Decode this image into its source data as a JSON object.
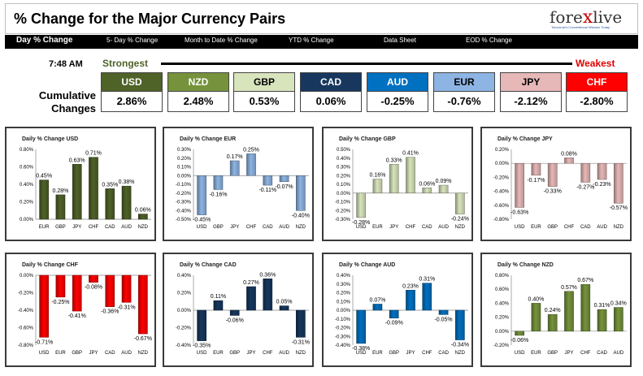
{
  "header": {
    "title": "% Change for the Major Currency Pairs",
    "logo_brand_pre": "fore",
    "logo_brand_x": "x",
    "logo_brand_post": "live",
    "logo_tagline": "Tomorrow's Conventional Wisdom Today"
  },
  "nav": {
    "items": [
      "Day % Change",
      "5- Day % Change",
      "Month to Date % Change",
      "YTD % Change",
      "Data Sheet",
      "EOD % Change"
    ]
  },
  "time": "7:48 AM",
  "strongest_label": "Strongest",
  "weakest_label": "Weakest",
  "cumulative_label": "Cumulative Changes",
  "currencies": [
    {
      "name": "USD",
      "value": "2.86%",
      "color": "#4f6228",
      "text_color": "#ffffff"
    },
    {
      "name": "NZD",
      "value": "2.48%",
      "color": "#76933c",
      "text_color": "#ffffff"
    },
    {
      "name": "GBP",
      "value": "0.53%",
      "color": "#d8e4bc",
      "text_color": "#000000"
    },
    {
      "name": "CAD",
      "value": "0.06%",
      "color": "#17375e",
      "text_color": "#ffffff"
    },
    {
      "name": "AUD",
      "value": "-0.25%",
      "color": "#0070c0",
      "text_color": "#ffffff"
    },
    {
      "name": "EUR",
      "value": "-0.76%",
      "color": "#8db4e2",
      "text_color": "#000000"
    },
    {
      "name": "JPY",
      "value": "-2.12%",
      "color": "#e6b8b7",
      "text_color": "#000000"
    },
    {
      "name": "CHF",
      "value": "-2.80%",
      "color": "#ff0000",
      "text_color": "#ffffff"
    }
  ],
  "chart_data": [
    {
      "type": "bar",
      "title": "Daily % Change USD",
      "color": "#4f6228",
      "categories": [
        "EUR",
        "GBP",
        "JPY",
        "CHF",
        "CAD",
        "AUD",
        "NZD"
      ],
      "values": [
        0.45,
        0.28,
        0.63,
        0.71,
        0.35,
        0.38,
        0.06
      ],
      "labels": [
        "0.45%",
        "0.28%",
        "0.63%",
        "0.71%",
        "0.35%",
        "0.38%",
        "0.06%"
      ],
      "ylim": [
        0,
        0.8
      ],
      "yticks": [
        0,
        0.2,
        0.4,
        0.6,
        0.8
      ],
      "ytick_labels": [
        "0.00%",
        "0.20%",
        "0.40%",
        "0.60%",
        "0.80%"
      ]
    },
    {
      "type": "bar",
      "title": "Daily % Change EUR",
      "color": "#8db4e2",
      "categories": [
        "USD",
        "GBP",
        "JPY",
        "CHF",
        "CAD",
        "AUD",
        "NZD"
      ],
      "values": [
        -0.45,
        -0.16,
        0.17,
        0.25,
        -0.11,
        -0.07,
        -0.4
      ],
      "labels": [
        "-0.45%",
        "-0.16%",
        "0.17%",
        "0.25%",
        "-0.11%",
        "-0.07%",
        "-0.40%"
      ],
      "ylim": [
        -0.5,
        0.3
      ],
      "yticks": [
        -0.5,
        -0.4,
        -0.3,
        -0.2,
        -0.1,
        0,
        0.1,
        0.2,
        0.3
      ],
      "ytick_labels": [
        "-0.50%",
        "-0.40%",
        "-0.30%",
        "-0.20%",
        "-0.10%",
        "0.00%",
        "0.10%",
        "0.20%",
        "0.30%"
      ]
    },
    {
      "type": "bar",
      "title": "Daily % Change GBP",
      "color": "#d8e4bc",
      "categories": [
        "USD",
        "EUR",
        "JPY",
        "CHF",
        "CAD",
        "AUD",
        "NZD"
      ],
      "values": [
        -0.28,
        0.16,
        0.33,
        0.41,
        0.06,
        0.09,
        -0.24
      ],
      "labels": [
        "-0.28%",
        "0.16%",
        "0.33%",
        "0.41%",
        "0.06%",
        "0.09%",
        "-0.24%"
      ],
      "ylim": [
        -0.3,
        0.5
      ],
      "yticks": [
        -0.3,
        -0.2,
        -0.1,
        0,
        0.1,
        0.2,
        0.3,
        0.4,
        0.5
      ],
      "ytick_labels": [
        "-0.30%",
        "-0.20%",
        "-0.10%",
        "0.00%",
        "0.10%",
        "0.20%",
        "0.30%",
        "0.40%",
        "0.50%"
      ]
    },
    {
      "type": "bar",
      "title": "Daily % Change JPY",
      "color": "#e6b8b7",
      "categories": [
        "USD",
        "EUR",
        "GBP",
        "CHF",
        "CAD",
        "AUD",
        "NZD"
      ],
      "values": [
        -0.63,
        -0.17,
        -0.33,
        0.08,
        -0.27,
        -0.23,
        -0.57
      ],
      "labels": [
        "-0.63%",
        "-0.17%",
        "-0.33%",
        "0.08%",
        "-0.27%",
        "-0.23%",
        "-0.57%"
      ],
      "ylim": [
        -0.8,
        0.2
      ],
      "yticks": [
        -0.8,
        -0.6,
        -0.4,
        -0.2,
        0,
        0.2
      ],
      "ytick_labels": [
        "-0.80%",
        "-0.60%",
        "-0.40%",
        "-0.20%",
        "0.00%",
        "0.20%"
      ]
    },
    {
      "type": "bar",
      "title": "Daily % Change CHF",
      "color": "#ff0000",
      "categories": [
        "USD",
        "EUR",
        "GBP",
        "JPY",
        "CAD",
        "AUD",
        "NZD"
      ],
      "values": [
        -0.71,
        -0.25,
        -0.41,
        -0.08,
        -0.36,
        -0.31,
        -0.67
      ],
      "labels": [
        "-0.71%",
        "-0.25%",
        "-0.41%",
        "-0.08%",
        "-0.36%",
        "-0.31%",
        "-0.67%"
      ],
      "ylim": [
        -0.8,
        0
      ],
      "yticks": [
        -0.8,
        -0.6,
        -0.4,
        -0.2,
        0
      ],
      "ytick_labels": [
        "-0.80%",
        "-0.60%",
        "-0.40%",
        "-0.20%",
        "0.00%"
      ]
    },
    {
      "type": "bar",
      "title": "Daily % Change CAD",
      "color": "#17375e",
      "categories": [
        "USD",
        "EUR",
        "GBP",
        "JPY",
        "CHF",
        "AUD",
        "NZD"
      ],
      "values": [
        -0.35,
        0.11,
        -0.06,
        0.27,
        0.36,
        0.05,
        -0.31
      ],
      "labels": [
        "-0.35%",
        "0.11%",
        "-0.06%",
        "0.27%",
        "0.36%",
        "0.05%",
        "-0.31%"
      ],
      "ylim": [
        -0.4,
        0.4
      ],
      "yticks": [
        -0.4,
        -0.2,
        0,
        0.2,
        0.4
      ],
      "ytick_labels": [
        "-0.40%",
        "-0.20%",
        "0.00%",
        "0.20%",
        "0.40%"
      ]
    },
    {
      "type": "bar",
      "title": "Daily % Change AUD",
      "color": "#0070c0",
      "categories": [
        "USD",
        "EUR",
        "GBP",
        "JPY",
        "CHF",
        "CAD",
        "NZD"
      ],
      "values": [
        -0.38,
        0.07,
        -0.09,
        0.23,
        0.31,
        -0.05,
        -0.34
      ],
      "labels": [
        "-0.38%",
        "0.07%",
        "-0.09%",
        "0.23%",
        "0.31%",
        "-0.05%",
        "-0.34%"
      ],
      "ylim": [
        -0.4,
        0.4
      ],
      "yticks": [
        -0.4,
        -0.3,
        -0.2,
        -0.1,
        0,
        0.1,
        0.2,
        0.3,
        0.4
      ],
      "ytick_labels": [
        "-0.40%",
        "-0.30%",
        "-0.20%",
        "-0.10%",
        "0.00%",
        "0.10%",
        "0.20%",
        "0.30%",
        "0.40%"
      ]
    },
    {
      "type": "bar",
      "title": "Daily % Change NZD",
      "color": "#76933c",
      "categories": [
        "USD",
        "EUR",
        "GBP",
        "JPY",
        "CHF",
        "CAD",
        "AUD"
      ],
      "values": [
        -0.06,
        0.4,
        0.24,
        0.57,
        0.67,
        0.31,
        0.34
      ],
      "labels": [
        "-0.06%",
        "0.40%",
        "0.24%",
        "0.57%",
        "0.67%",
        "0.31%",
        "0.34%"
      ],
      "ylim": [
        -0.2,
        0.8
      ],
      "yticks": [
        -0.2,
        0,
        0.2,
        0.4,
        0.6,
        0.8
      ],
      "ytick_labels": [
        "-0.20%",
        "0.00%",
        "0.20%",
        "0.40%",
        "0.60%",
        "0.80%"
      ]
    }
  ]
}
